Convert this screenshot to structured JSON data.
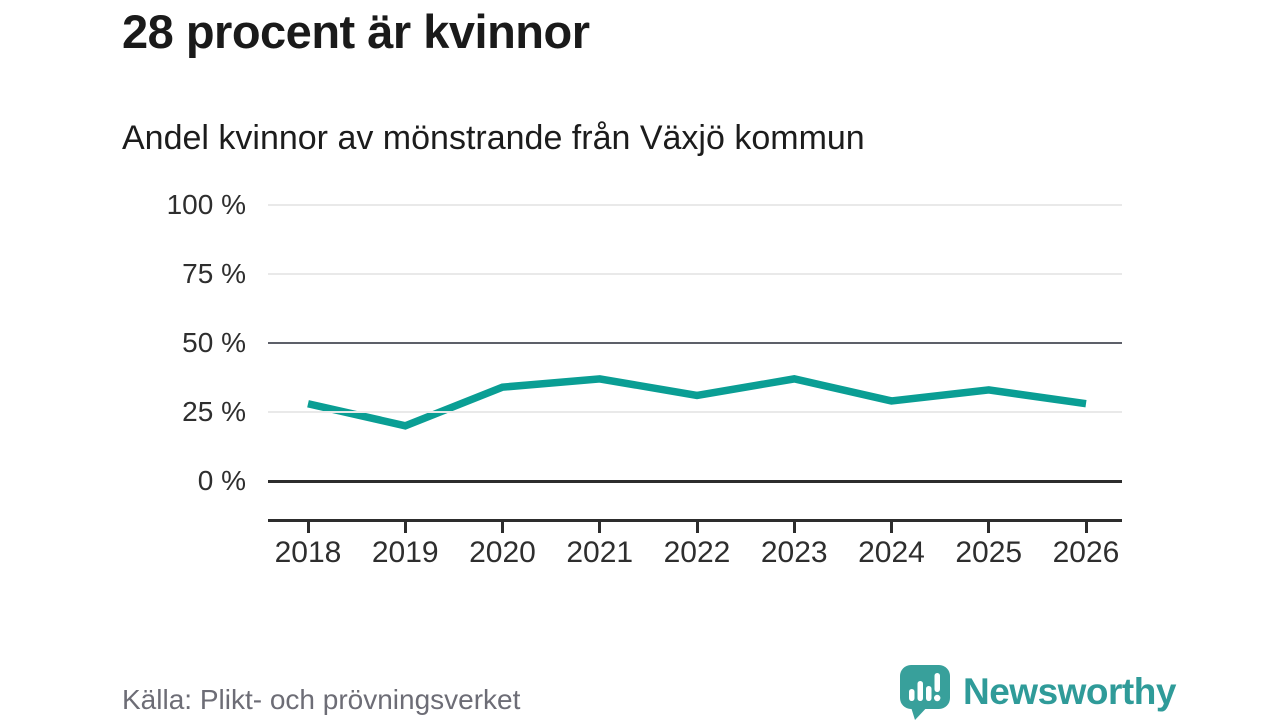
{
  "header": {
    "title": "28 procent är kvinnor",
    "subtitle": "Andel kvinnor av mönstrande från Växjö kommun"
  },
  "chart_data": {
    "type": "line",
    "title": "28 procent är kvinnor",
    "subtitle": "Andel kvinnor av mönstrande från Växjö kommun",
    "x": [
      "2018",
      "2019",
      "2020",
      "2021",
      "2022",
      "2023",
      "2024",
      "2025",
      "2026"
    ],
    "values": [
      28,
      20,
      34,
      37,
      31,
      37,
      29,
      33,
      28
    ],
    "unit": "%",
    "ylim": [
      0,
      100
    ],
    "yticks": [
      {
        "value": 100,
        "label": "100 %"
      },
      {
        "value": 75,
        "label": "75 %"
      },
      {
        "value": 50,
        "label": "50 %"
      },
      {
        "value": 25,
        "label": "25 %"
      },
      {
        "value": 0,
        "label": "0 %"
      }
    ],
    "reference_line": 50,
    "grid": "horizontal",
    "legend": "none",
    "colors": {
      "line": "#0a9e94",
      "grid": "#e9e9e9",
      "reference": "#5d6069",
      "axis": "#2d2d2d",
      "tick_text": "#2e2e2e"
    }
  },
  "footer": {
    "source": "Källa: Plikt- och prövningsverket",
    "brand": "Newsworthy",
    "brand_color": "#2f9b99",
    "brand_icon": "newsworthy-speech-bubble-chart-icon",
    "brand_icon_color": "#38a09b"
  }
}
